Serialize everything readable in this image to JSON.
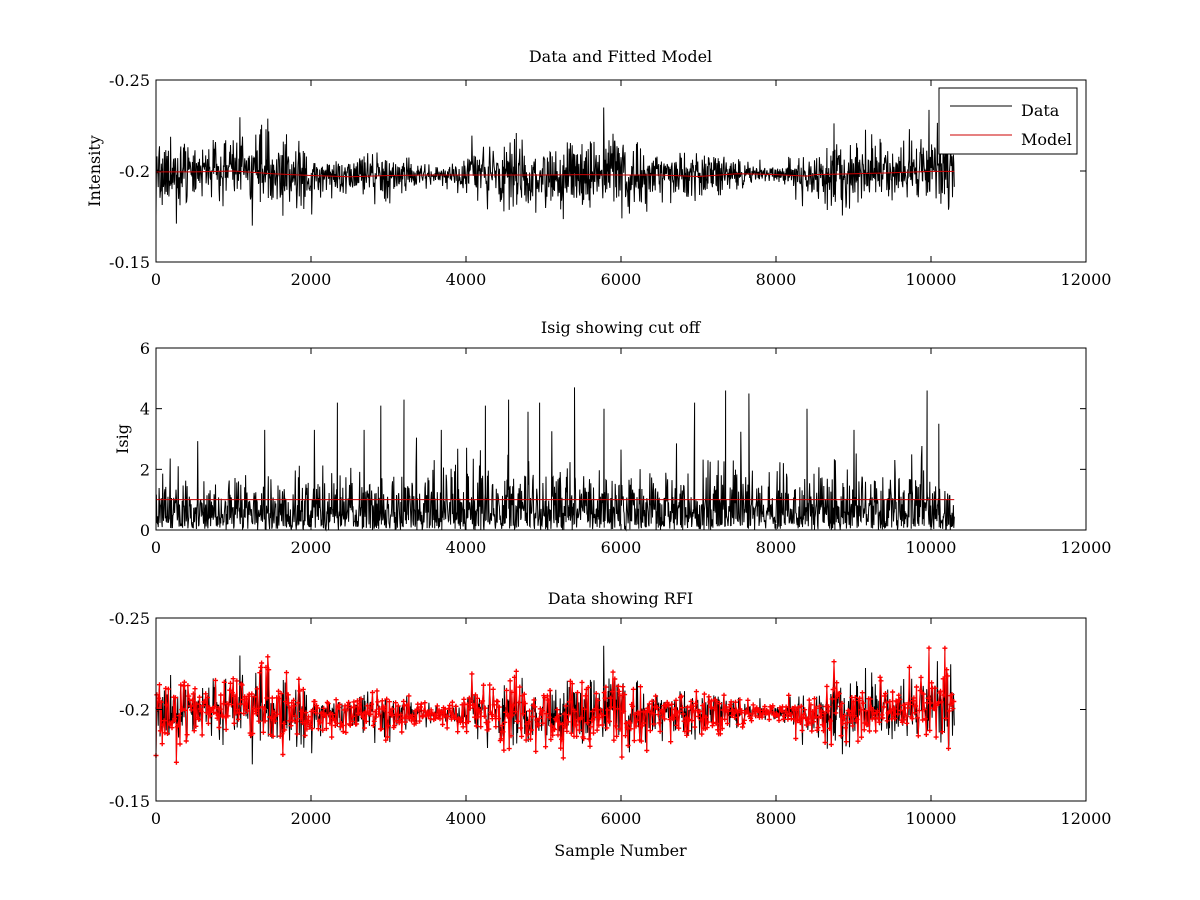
{
  "chart_data": [
    {
      "type": "line",
      "title": "Data and Fitted Model",
      "xlabel": "",
      "ylabel": "Intensity",
      "xlim": [
        0,
        12000
      ],
      "ylim": [
        -0.25,
        -0.15
      ],
      "y_direction": "reversed",
      "xticks": [
        0,
        2000,
        4000,
        6000,
        8000,
        10000,
        12000
      ],
      "xtick_labels": [
        "0",
        "2000",
        "4000",
        "6000",
        "8000",
        "10000",
        "12000"
      ],
      "yticks": [
        -0.15,
        -0.2,
        -0.25
      ],
      "ytick_labels": [
        "-0.15",
        "-0.2",
        "-0.25"
      ],
      "legend": {
        "position": "top-right",
        "entries": [
          {
            "label": "Data",
            "color": "#000000"
          },
          {
            "label": "Model",
            "color": "#cc0000"
          }
        ]
      },
      "series": [
        {
          "name": "Data",
          "color": "#000000",
          "n_samples": 10300,
          "mean": -0.2,
          "min": -0.24,
          "max": -0.17
        },
        {
          "name": "Model",
          "color": "#cc0000",
          "x": [
            0,
            500,
            1000,
            1500,
            2000,
            2500,
            3000,
            3500,
            4000,
            4500,
            5000,
            5500,
            6000,
            6500,
            7000,
            7500,
            8000,
            8400,
            8500,
            9000,
            9500,
            10000,
            10300
          ],
          "y": [
            -0.1995,
            -0.1995,
            -0.2,
            -0.1985,
            -0.1975,
            -0.1968,
            -0.1975,
            -0.1978,
            -0.1978,
            -0.1978,
            -0.1978,
            -0.198,
            -0.1978,
            -0.1978,
            -0.197,
            -0.1985,
            -0.198,
            -0.1972,
            -0.198,
            -0.1985,
            -0.199,
            -0.1998,
            -0.1998
          ]
        }
      ]
    },
    {
      "type": "line",
      "title": "Isig showing cut off",
      "xlabel": "",
      "ylabel": "Isig",
      "xlim": [
        0,
        12000
      ],
      "ylim": [
        0,
        6
      ],
      "xticks": [
        0,
        2000,
        4000,
        6000,
        8000,
        10000,
        12000
      ],
      "xtick_labels": [
        "0",
        "2000",
        "4000",
        "6000",
        "8000",
        "10000",
        "12000"
      ],
      "yticks": [
        0,
        2,
        4,
        6
      ],
      "ytick_labels": [
        "0",
        "2",
        "4",
        "6"
      ],
      "series": [
        {
          "name": "Isig",
          "color": "#000000",
          "n_samples": 10300,
          "min": 0,
          "max": 4.7,
          "peaks": [
            {
              "x": 2340,
              "y": 4.2
            },
            {
              "x": 2900,
              "y": 4.1
            },
            {
              "x": 3200,
              "y": 4.3
            },
            {
              "x": 4250,
              "y": 4.1
            },
            {
              "x": 4550,
              "y": 4.3
            },
            {
              "x": 4800,
              "y": 3.9
            },
            {
              "x": 4950,
              "y": 4.2
            },
            {
              "x": 5400,
              "y": 4.7
            },
            {
              "x": 5780,
              "y": 4.0
            },
            {
              "x": 6950,
              "y": 4.2
            },
            {
              "x": 7350,
              "y": 4.6
            },
            {
              "x": 7650,
              "y": 4.5
            },
            {
              "x": 8400,
              "y": 4.0
            },
            {
              "x": 9950,
              "y": 4.6
            },
            {
              "x": 10100,
              "y": 3.5
            }
          ]
        },
        {
          "name": "Cut off",
          "color": "#cc0000",
          "x": [
            0,
            10300
          ],
          "y": [
            1,
            1
          ]
        }
      ]
    },
    {
      "type": "line",
      "title": "Data showing RFI",
      "xlabel": "Sample Number",
      "ylabel": "",
      "xlim": [
        0,
        12000
      ],
      "ylim": [
        -0.25,
        -0.15
      ],
      "y_direction": "reversed",
      "xticks": [
        0,
        2000,
        4000,
        6000,
        8000,
        10000,
        12000
      ],
      "xtick_labels": [
        "0",
        "2000",
        "4000",
        "6000",
        "8000",
        "10000",
        "12000"
      ],
      "yticks": [
        -0.15,
        -0.2,
        -0.25
      ],
      "ytick_labels": [
        "-0.15",
        "-0.2",
        "-0.25"
      ],
      "series": [
        {
          "name": "Data",
          "color": "#000000",
          "n_samples": 10300,
          "min": -0.24,
          "max": -0.17
        },
        {
          "name": "RFI points",
          "color": "#ff0000",
          "marker": "+",
          "n_samples": 10300
        }
      ]
    }
  ]
}
